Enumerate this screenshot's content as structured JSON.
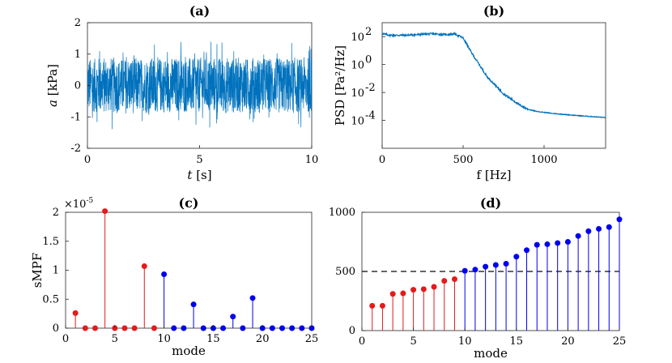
{
  "chart_data": [
    {
      "panel": "(a)",
      "type": "line",
      "title": "(a)",
      "xlabel": "t",
      "xlabel_unit": "[s]",
      "ylabel": "a",
      "ylabel_unit": "[kPa]",
      "xlim": [
        0,
        10
      ],
      "ylim": [
        -2,
        2
      ],
      "xticks": [
        "0",
        "5",
        "10"
      ],
      "yticks": [
        "-2",
        "-1",
        "0",
        "1",
        "2"
      ],
      "series": [
        {
          "name": "signal",
          "description": "random noise, typical envelope ±0.9 kPa, peaks about ±1.4 kPa",
          "typical_amplitude": 0.9,
          "peak_amplitude": 1.4
        }
      ],
      "color": "#0072BD"
    },
    {
      "panel": "(b)",
      "type": "line",
      "title": "(b)",
      "xlabel": "f",
      "xlabel_unit": "[Hz]",
      "ylabel": "PSD",
      "ylabel_unit": "[Pa²/Hz]",
      "xlim": [
        0,
        1380
      ],
      "yscale": "log",
      "ylim_exp": [
        -6,
        3
      ],
      "xticks": [
        "0",
        "500",
        "1000"
      ],
      "yticks": [
        "10",
        "10",
        "10",
        "10"
      ],
      "ytick_exps": [
        "-4",
        "-2",
        "0",
        "2"
      ],
      "series": [
        {
          "name": "PSD",
          "x": [
            0,
            50,
            150,
            300,
            400,
            450,
            500,
            560,
            650,
            750,
            850,
            900,
            950,
            1050,
            1200,
            1380
          ],
          "log10_y": [
            2.2,
            2.1,
            2.1,
            2.2,
            2.15,
            2.2,
            1.9,
            0.7,
            -0.9,
            -2.1,
            -2.9,
            -3.2,
            -3.35,
            -3.5,
            -3.65,
            -3.8
          ]
        }
      ],
      "color": "#0072BD"
    },
    {
      "panel": "(c)",
      "type": "stem",
      "title": "(c)",
      "xlabel": "mode",
      "ylabel": "sMPF",
      "multiplier": "×10",
      "multiplier_exp": "-5",
      "xlim": [
        0,
        25
      ],
      "ylim": [
        0,
        2
      ],
      "xticks": [
        "0",
        "5",
        "10",
        "15",
        "20",
        "25"
      ],
      "yticks": [
        "0",
        "0.5",
        "1",
        "1.5",
        "2"
      ],
      "x": [
        1,
        2,
        3,
        4,
        5,
        6,
        7,
        8,
        9,
        10,
        11,
        12,
        13,
        14,
        15,
        16,
        17,
        18,
        19,
        20,
        21,
        22,
        23,
        24,
        25
      ],
      "values": [
        0.26,
        0,
        0,
        2.02,
        0,
        0,
        0,
        1.07,
        0,
        0.93,
        0,
        0,
        0.41,
        0,
        0,
        0,
        0.2,
        0,
        0.52,
        0,
        0,
        0,
        0,
        0,
        0
      ],
      "series_colors": {
        "modes_1_9": "#e41a1c",
        "modes_10_25": "#0000ee"
      }
    },
    {
      "panel": "(d)",
      "type": "stem",
      "title": "(d)",
      "xlabel": "mode",
      "ylabel": "",
      "xlim": [
        0,
        25
      ],
      "ylim": [
        0,
        1000
      ],
      "xticks": [
        "0",
        "5",
        "10",
        "15",
        "20",
        "25"
      ],
      "yticks": [
        "0",
        "500",
        "1000"
      ],
      "x": [
        1,
        2,
        3,
        4,
        5,
        6,
        7,
        8,
        9,
        10,
        11,
        12,
        13,
        14,
        15,
        16,
        17,
        18,
        19,
        20,
        21,
        22,
        23,
        24,
        25
      ],
      "values": [
        210,
        210,
        310,
        315,
        345,
        350,
        370,
        420,
        435,
        505,
        515,
        540,
        555,
        565,
        625,
        680,
        725,
        730,
        740,
        750,
        800,
        840,
        860,
        875,
        940
      ],
      "reference_line": 500,
      "series_colors": {
        "modes_1_9": "#e41a1c",
        "modes_10_25": "#0000ee"
      }
    }
  ]
}
